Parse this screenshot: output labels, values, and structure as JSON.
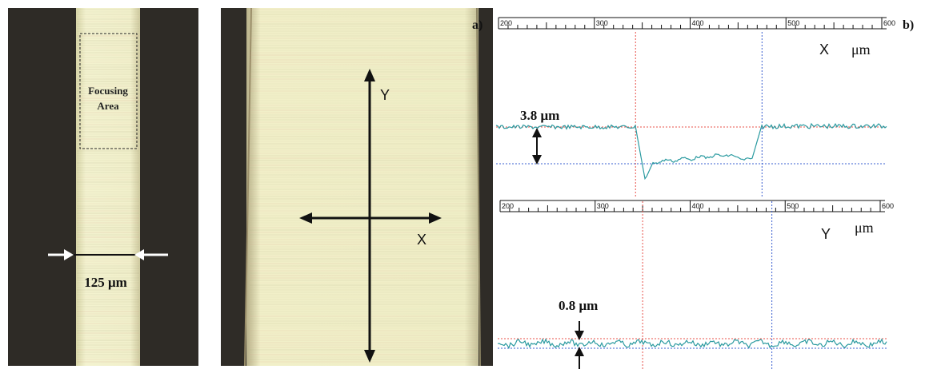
{
  "figure": {
    "panel_a_label": "a)",
    "panel_b_label": "b)",
    "micrograph_1": {
      "focusing_area_line1": "Focusing",
      "focusing_area_line2": "Area",
      "width_label": "125 μm"
    },
    "micrograph_2": {
      "y_axis_label": "Y",
      "x_axis_label": "X"
    },
    "profile_x": {
      "axis_name": "X",
      "unit": "μm",
      "ticks": [
        "200",
        "300",
        "400",
        "500",
        "600"
      ],
      "step_label": "3.8 μm",
      "cursor_red": 343,
      "cursor_blue": 475,
      "step_height": 3.8
    },
    "profile_y": {
      "axis_name": "Y",
      "unit": "μm",
      "ticks": [
        "200",
        "300",
        "400",
        "500",
        "600"
      ],
      "step_label": "0.8 μm",
      "cursor_red": 350,
      "cursor_blue": 486,
      "step_height": 0.8
    },
    "colors": {
      "trace": "#2a9aa0",
      "red_cursor": "#e8504a",
      "blue_cursor": "#3a5fd0",
      "dark_background": "#2e2b26",
      "fiber_yellow": "#f0efc6"
    }
  }
}
